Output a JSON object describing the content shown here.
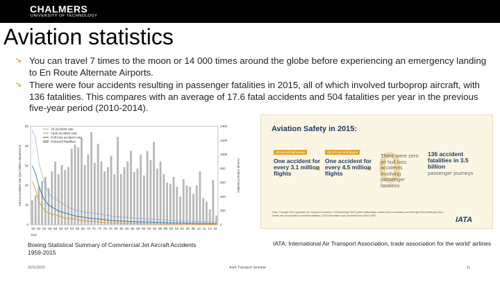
{
  "header": {
    "logo_main": "CHALMERS",
    "logo_sub": "UNIVERSITY OF TECHNOLOGY"
  },
  "slide": {
    "title": "Aviation statistics",
    "bullets": [
      "You can travel 7 times to the moon or 14 000 times around the globe before experiencing an emergency landing to En Route Alternate Airports.",
      "There were four accidents resulting in passenger fatalities in 2015, all of which involved turboprop aircraft, with 136 fatalities. This compares with an average of 17.6 fatal accidents and 504 fatalities per year in the previous five-year period (2010-2014)."
    ]
  },
  "chart_data": {
    "type": "bar",
    "legend": [
      "All accident rate",
      "Fatal accident rate",
      "Hull loss accident rate",
      "Onboard fatalities"
    ],
    "legend_placement": "top-left",
    "xlabel": "Year",
    "ylabel_left": "Annual accident rate (per million departures)",
    "ylabel_right": "Annual onboard fatalities",
    "x_ticks": [
      "50",
      "52",
      "54",
      "56",
      "58",
      "60",
      "62",
      "64",
      "66",
      "68",
      "70",
      "72",
      "74",
      "76",
      "78",
      "80",
      "82",
      "84",
      "86",
      "88",
      "90",
      "92",
      "94",
      "96",
      "98",
      "00",
      "02",
      "04",
      "06",
      "08",
      "10",
      "12",
      "14",
      "15"
    ],
    "yleft_ticks": [
      "0",
      "10",
      "20",
      "30",
      "40",
      "50"
    ],
    "yright_ticks": [
      "0",
      "200",
      "400",
      "600",
      "800",
      "1000",
      "1200",
      "1400"
    ],
    "ylim_left": [
      0,
      50
    ],
    "ylim_right": [
      0,
      1400
    ],
    "x_years": [
      1959,
      1960,
      1961,
      1962,
      1963,
      1964,
      1965,
      1966,
      1967,
      1968,
      1969,
      1970,
      1971,
      1972,
      1973,
      1974,
      1975,
      1976,
      1977,
      1978,
      1979,
      1980,
      1981,
      1982,
      1983,
      1984,
      1985,
      1986,
      1987,
      1988,
      1989,
      1990,
      1991,
      1992,
      1993,
      1994,
      1995,
      1996,
      1997,
      1998,
      1999,
      2000,
      2001,
      2002,
      2003,
      2004,
      2005,
      2006,
      2007,
      2008,
      2009,
      2010,
      2011,
      2012,
      2013,
      2014,
      2015
    ],
    "series": [
      {
        "name": "All accident rate",
        "color": "#8aa0c8",
        "values": [
          48,
          44,
          32,
          25,
          20,
          16,
          14,
          13,
          12,
          11,
          10,
          9,
          8,
          7.5,
          7,
          6.8,
          6.5,
          6.2,
          6,
          5.8,
          5.6,
          5.4,
          5,
          4.8,
          4.5,
          4.2,
          4,
          4,
          3.8,
          3.7,
          3.6,
          3.4,
          3.3,
          3.2,
          3.1,
          3,
          2.9,
          2.8,
          2.8,
          2.6,
          2.5,
          2.4,
          2.3,
          2.2,
          2.1,
          2,
          2,
          1.9,
          1.8,
          1.8,
          1.7,
          1.6,
          1.6,
          1.5,
          1.5,
          1.4,
          1.4
        ]
      },
      {
        "name": "Fatal accident rate",
        "color": "#e0a030",
        "values": [
          22,
          18,
          12,
          9,
          7,
          6,
          5.5,
          5,
          4.5,
          4,
          3.5,
          3.2,
          3,
          2.8,
          2.5,
          2.3,
          2,
          1.9,
          1.8,
          1.6,
          1.5,
          1.3,
          1.2,
          1.1,
          1,
          0.9,
          0.9,
          0.8,
          0.8,
          0.7,
          0.7,
          0.6,
          0.6,
          0.6,
          0.5,
          0.5,
          0.5,
          0.5,
          0.4,
          0.4,
          0.4,
          0.4,
          0.3,
          0.3,
          0.3,
          0.3,
          0.3,
          0.3,
          0.2,
          0.2,
          0.2,
          0.2,
          0.2,
          0.2,
          0.2,
          0.2,
          0.2
        ]
      },
      {
        "name": "Hull loss accident rate",
        "color": "#2f7fb8",
        "values": [
          30,
          26,
          20,
          15,
          12,
          10,
          9,
          8,
          7,
          6.5,
          6,
          5.5,
          5,
          4.5,
          4.2,
          4,
          3.8,
          3.5,
          3.3,
          3.1,
          3,
          2.8,
          2.6,
          2.4,
          2.2,
          2.1,
          2,
          1.9,
          1.8,
          1.7,
          1.6,
          1.6,
          1.5,
          1.5,
          1.4,
          1.4,
          1.3,
          1.3,
          1.2,
          1.2,
          1.1,
          1.1,
          1,
          1,
          0.9,
          0.9,
          0.9,
          0.8,
          0.8,
          0.8,
          0.7,
          0.7,
          0.7,
          0.6,
          0.6,
          0.6,
          0.5
        ]
      },
      {
        "name": "Onboard fatalities",
        "color": "#b8b8b8",
        "values": [
          350,
          420,
          540,
          620,
          680,
          520,
          760,
          900,
          720,
          850,
          780,
          820,
          1080,
          1140,
          1100,
          1230,
          850,
          1000,
          1320,
          880,
          1150,
          900,
          760,
          820,
          980,
          720,
          1250,
          720,
          820,
          900,
          1050,
          750,
          800,
          1000,
          700,
          1050,
          920,
          1180,
          800,
          900,
          720,
          600,
          580,
          680,
          540,
          400,
          650,
          560,
          540,
          440,
          560,
          760,
          380,
          330,
          220,
          640,
          130
        ]
      }
    ]
  },
  "infographic": {
    "title": "Aviation Safety in 2015:",
    "tag1": "All aircraft hull losses",
    "tag2": "All IATA jet hull losses",
    "col1": "One accident for every 3.1 million flights",
    "col2": "One accident for every 4.5 million flights",
    "col3": "There were zero jet hull loss accidents involving passenger fatalities",
    "col4_main": "136 accident fatalities in 3.5 billion",
    "col4_sub": "passenger journeys",
    "notes": "Note: Through 2015 operators are required to conform. Germanwings 2015 (plane deliberately crashed into a mountain) and Metrojet 2015 (destroyed by a bomb) are not included in accident statistics. 2015 information was extracted from IATA's ASR",
    "logo": "IATA"
  },
  "captions": {
    "left": "Boeing Statistical Summary of Commercial Jet Aircraft Accidents 1959-2015",
    "right": "IATA: International Air Transport Association, trade association for the world' airlines"
  },
  "footer": {
    "date": "22/11/2020",
    "course": "Aa/A Transport Seminar",
    "page": "11"
  },
  "colors": {
    "topbar": "#000000",
    "bullet_accent": "#e3a23a",
    "info_blue": "#1f3d62",
    "info_orange": "#e2a126"
  }
}
